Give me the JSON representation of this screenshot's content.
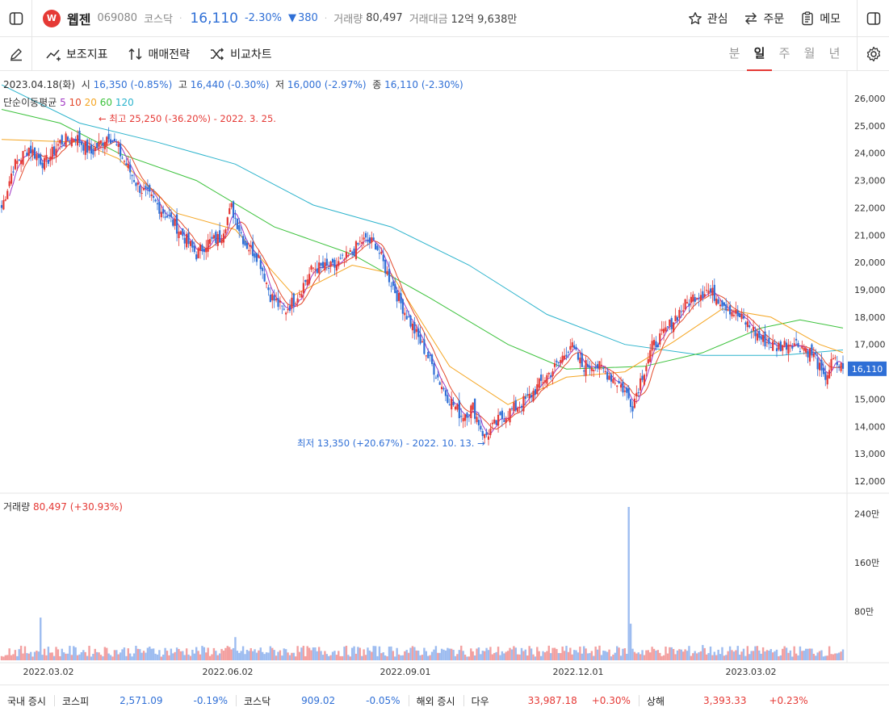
{
  "header": {
    "logo_text": "W",
    "name": "웹젠",
    "code": "069080",
    "market": "코스닥",
    "price": "16,110",
    "change_pct": "-2.30%",
    "change_arrow": "▼",
    "change_abs": "380",
    "volume_label": "거래량",
    "volume": "80,497",
    "amount_label": "거래대금",
    "amount": "12억 9,638만",
    "actions": {
      "watch": "관심",
      "order": "주문",
      "memo": "메모"
    }
  },
  "toolbar": {
    "indicators": "보조지표",
    "strategy": "매매전략",
    "compare": "비교차트",
    "periods": [
      "분",
      "일",
      "주",
      "월",
      "년"
    ],
    "active_period": "일"
  },
  "info": {
    "date": "2023.04.18(화)",
    "open_label": "시",
    "open": "16,350 (-0.85%)",
    "high_label": "고",
    "high": "16,440 (-0.30%)",
    "low_label": "저",
    "low": "16,000 (-2.97%)",
    "close_label": "종",
    "close": "16,110 (-2.30%)"
  },
  "ma": {
    "label": "단순이동평균",
    "periods": [
      "5",
      "10",
      "20",
      "60",
      "120"
    ],
    "colors": [
      "#a238c4",
      "#e34a2c",
      "#f5a623",
      "#3cc23c",
      "#2bb3cc"
    ]
  },
  "annotations": {
    "high": "← 최고 25,250 (-36.20%) - 2022. 3. 25.",
    "low": "최저 13,350 (+20.67%) - 2022. 10. 13. →"
  },
  "volume_panel": {
    "label": "거래량",
    "value": "80,497 (+30.93%)"
  },
  "colors": {
    "up": "#e53935",
    "down": "#2f6fd6",
    "vol_up": "#f3a0a0",
    "vol_down": "#9dbcf0"
  },
  "chart_data": {
    "type": "candlestick",
    "price_ticks": [
      26000,
      25000,
      24000,
      23000,
      22000,
      21000,
      20000,
      19000,
      18000,
      17000,
      16000,
      15000,
      14000,
      13000,
      12000
    ],
    "price_tick_labels": [
      "26,000",
      "25,000",
      "24,000",
      "23,000",
      "22,000",
      "21,000",
      "20,000",
      "19,000",
      "18,000",
      "17,000",
      "16,000",
      "15,000",
      "14,000",
      "13,000",
      "12,000"
    ],
    "volume_tick_labels": [
      "240만",
      "160만",
      "80만"
    ],
    "volume_ticks": [
      2400000,
      1600000,
      800000
    ],
    "current_price": 16110,
    "current_price_label": "16,110",
    "x_labels": [
      "2022.03.02",
      "2022.06.02",
      "2022.09.01",
      "2022.12.01",
      "2023.03.02"
    ],
    "price_path": [
      [
        0,
        22000
      ],
      [
        6,
        23500
      ],
      [
        14,
        24200
      ],
      [
        22,
        23600
      ],
      [
        30,
        24400
      ],
      [
        38,
        24600
      ],
      [
        46,
        24000
      ],
      [
        55,
        24700
      ],
      [
        60,
        24100
      ],
      [
        70,
        22800
      ],
      [
        80,
        22100
      ],
      [
        90,
        21300
      ],
      [
        100,
        20300
      ],
      [
        105,
        20700
      ],
      [
        112,
        20900
      ],
      [
        118,
        22000
      ],
      [
        125,
        20700
      ],
      [
        132,
        20200
      ],
      [
        138,
        18800
      ],
      [
        145,
        18200
      ],
      [
        150,
        18600
      ],
      [
        160,
        19800
      ],
      [
        170,
        19800
      ],
      [
        178,
        20200
      ],
      [
        185,
        20800
      ],
      [
        192,
        20700
      ],
      [
        198,
        19600
      ],
      [
        205,
        18500
      ],
      [
        212,
        17500
      ],
      [
        220,
        16400
      ],
      [
        228,
        15200
      ],
      [
        236,
        14400
      ],
      [
        242,
        14700
      ],
      [
        248,
        13600
      ],
      [
        255,
        14200
      ],
      [
        262,
        14600
      ],
      [
        270,
        15000
      ],
      [
        278,
        15700
      ],
      [
        286,
        16300
      ],
      [
        292,
        17000
      ],
      [
        298,
        16200
      ],
      [
        304,
        16300
      ],
      [
        310,
        16000
      ],
      [
        318,
        15500
      ],
      [
        324,
        14800
      ],
      [
        328,
        15700
      ],
      [
        334,
        16900
      ],
      [
        340,
        17400
      ],
      [
        348,
        18200
      ],
      [
        356,
        18800
      ],
      [
        362,
        19000
      ],
      [
        368,
        18700
      ],
      [
        374,
        18300
      ],
      [
        382,
        17800
      ],
      [
        390,
        17200
      ],
      [
        398,
        16900
      ],
      [
        406,
        17100
      ],
      [
        412,
        16900
      ],
      [
        418,
        16500
      ],
      [
        422,
        15700
      ],
      [
        427,
        16400
      ],
      [
        432,
        16110
      ]
    ],
    "ma_paths": {
      "ma20": [
        [
          0,
          24500
        ],
        [
          40,
          24400
        ],
        [
          60,
          23800
        ],
        [
          90,
          21800
        ],
        [
          120,
          21200
        ],
        [
          150,
          18800
        ],
        [
          180,
          19900
        ],
        [
          200,
          19600
        ],
        [
          230,
          16200
        ],
        [
          260,
          14800
        ],
        [
          290,
          15800
        ],
        [
          320,
          16000
        ],
        [
          345,
          17100
        ],
        [
          370,
          18300
        ],
        [
          395,
          18000
        ],
        [
          420,
          17000
        ],
        [
          432,
          16700
        ]
      ],
      "ma60": [
        [
          0,
          25600
        ],
        [
          30,
          25100
        ],
        [
          60,
          24000
        ],
        [
          100,
          23000
        ],
        [
          140,
          21300
        ],
        [
          180,
          20300
        ],
        [
          220,
          18700
        ],
        [
          260,
          17000
        ],
        [
          290,
          16100
        ],
        [
          330,
          16200
        ],
        [
          360,
          16700
        ],
        [
          390,
          17600
        ],
        [
          410,
          17900
        ],
        [
          432,
          17600
        ]
      ],
      "ma120": [
        [
          0,
          26500
        ],
        [
          40,
          25100
        ],
        [
          80,
          24400
        ],
        [
          120,
          23600
        ],
        [
          160,
          22100
        ],
        [
          200,
          21300
        ],
        [
          240,
          19900
        ],
        [
          280,
          18100
        ],
        [
          320,
          17000
        ],
        [
          360,
          16600
        ],
        [
          400,
          16600
        ],
        [
          432,
          16800
        ]
      ]
    },
    "volume_spikes": [
      [
        20,
        700000
      ],
      [
        120,
        380000
      ],
      [
        322,
        2520000
      ],
      [
        323,
        600000
      ],
      [
        360,
        250000
      ],
      [
        420,
        150000
      ]
    ]
  },
  "footer": {
    "domestic": "국내 증시",
    "kospi_label": "코스피",
    "kospi": "2,571.09",
    "kospi_pct": "-0.19%",
    "kosdaq_label": "코스닥",
    "kosdaq": "909.02",
    "kosdaq_pct": "-0.05%",
    "overseas": "해외 증시",
    "dow_label": "다우",
    "dow": "33,987.18",
    "dow_pct": "+0.30%",
    "shanghai_label": "상해",
    "shanghai": "3,393.33",
    "shanghai_pct": "+0.23%"
  }
}
